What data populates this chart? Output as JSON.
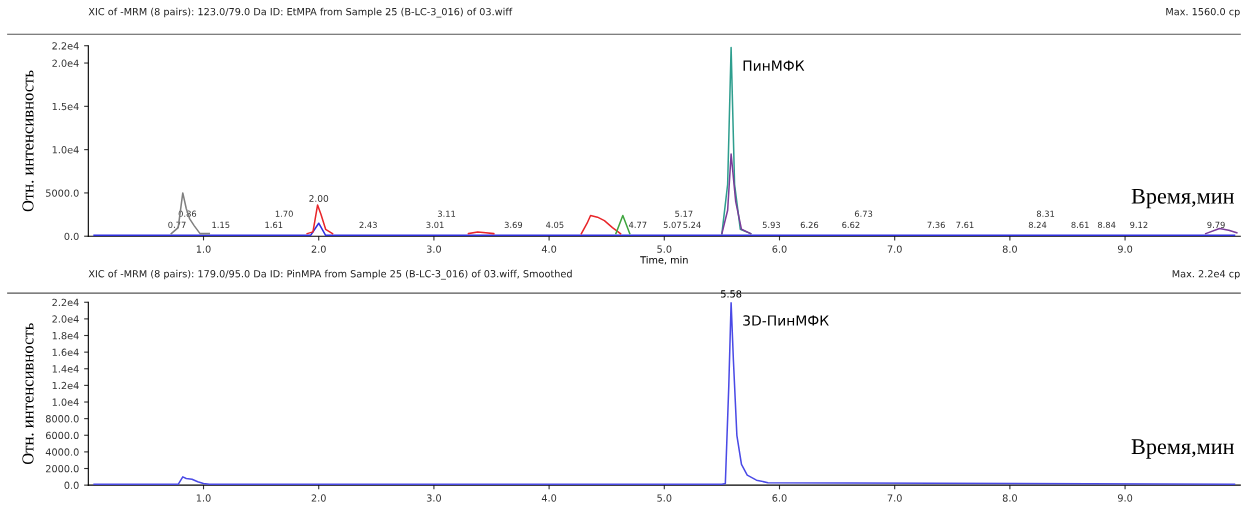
{
  "chart_data": [
    {
      "type": "line",
      "title": "XIC of -MRM (8 pairs): 123.0/79.0 Da ID: EtMPA from Sample 25 (B-LC-3_016) of 03.wiff",
      "subtitle": "Max. 1560.0 cp",
      "xlabel": "Time, min",
      "ylabel": "Отн. интенсивность",
      "xlim": [
        0,
        10
      ],
      "xticks": [
        {
          "value": 1,
          "label": "1.0"
        },
        {
          "value": 2,
          "label": "2.0"
        },
        {
          "value": 3,
          "label": "3.0"
        },
        {
          "value": 4,
          "label": "4.0"
        },
        {
          "value": 5,
          "label": "5.0"
        },
        {
          "value": 6,
          "label": "6.0"
        },
        {
          "value": 7,
          "label": "7.0"
        },
        {
          "value": 8,
          "label": "8.0"
        },
        {
          "value": 9,
          "label": "9.0"
        }
      ],
      "ylim": [
        0,
        22000
      ],
      "yticks": [
        {
          "value": 0,
          "label": "0.0"
        },
        {
          "value": 5000,
          "label": "5000.0"
        },
        {
          "value": 10000,
          "label": "1.0e4"
        },
        {
          "value": 15000,
          "label": "1.5e4"
        },
        {
          "value": 20000,
          "label": "2.0e4"
        },
        {
          "value": 22000,
          "label": "2.2e4"
        }
      ],
      "grid": false,
      "legend": false,
      "series": [
        {
          "color": "#2f2fe0",
          "x": [
            0.05,
            1.93,
            2.0,
            2.06,
            9.95
          ],
          "values": [
            100,
            100,
            1500,
            100,
            100
          ]
        },
        {
          "color": "#808080",
          "x": [
            0.72,
            0.78,
            0.82,
            0.85,
            0.88,
            0.92,
            0.97,
            1.05
          ],
          "values": [
            300,
            1000,
            5000,
            3200,
            2000,
            1200,
            300,
            300
          ]
        },
        {
          "color": "#e8262a",
          "x": [
            1.9,
            1.95,
            1.99,
            2.02,
            2.06,
            2.12,
            2.2,
            3.3,
            3.38,
            3.45,
            3.52,
            3.6,
            4.28,
            4.33,
            4.36,
            4.42,
            4.48,
            4.55,
            4.62
          ],
          "values": [
            300,
            500,
            3600,
            2500,
            800,
            300,
            null,
            300,
            500,
            400,
            300,
            null,
            300,
            1500,
            2400,
            2200,
            1800,
            1000,
            300
          ]
        },
        {
          "color": "#3fa53f",
          "x": [
            4.58,
            4.64,
            4.7
          ],
          "values": [
            300,
            2400,
            300
          ]
        },
        {
          "color": "#2e9e8e",
          "x": [
            5.5,
            5.55,
            5.58,
            5.61,
            5.66,
            5.75
          ],
          "values": [
            300,
            6000,
            21800,
            6000,
            800,
            300
          ]
        },
        {
          "color": "#7a3d9a",
          "x": [
            5.5,
            5.55,
            5.58,
            5.62,
            5.67,
            5.75,
            7.0,
            9.7,
            9.82,
            9.9,
            9.97
          ],
          "values": [
            300,
            3000,
            9500,
            4000,
            800,
            300,
            null,
            300,
            900,
            700,
            400
          ]
        }
      ],
      "annotations": [
        {
          "text": "ПинМФК",
          "x": 5.58,
          "y": 21800
        },
        "Время,мин",
        {
          "text": "0.77",
          "x": 0.77,
          "y": 600
        },
        {
          "text": "0.86",
          "x": 0.86,
          "y": 600
        },
        {
          "text": "1.15",
          "x": 1.15,
          "y": 600
        },
        {
          "text": "1.61",
          "x": 1.61,
          "y": 600
        },
        {
          "text": "1.70",
          "x": 1.7,
          "y": 600
        },
        {
          "text": "2.00",
          "x": 2.0,
          "y": 3600
        },
        {
          "text": "2.43",
          "x": 2.43,
          "y": 600
        },
        {
          "text": "3.01",
          "x": 3.01,
          "y": 600
        },
        {
          "text": "3.11",
          "x": 3.11,
          "y": 600
        },
        {
          "text": "3.69",
          "x": 3.69,
          "y": 600
        },
        {
          "text": "4.05",
          "x": 4.05,
          "y": 600
        },
        {
          "text": "4.77",
          "x": 4.77,
          "y": 600
        },
        {
          "text": "5.07",
          "x": 5.07,
          "y": 600
        },
        {
          "text": "5.17",
          "x": 5.17,
          "y": 600
        },
        {
          "text": "5.24",
          "x": 5.24,
          "y": 600
        },
        {
          "text": "5.93",
          "x": 5.93,
          "y": 600
        },
        {
          "text": "6.26",
          "x": 6.26,
          "y": 600
        },
        {
          "text": "6.62",
          "x": 6.62,
          "y": 600
        },
        {
          "text": "6.73",
          "x": 6.73,
          "y": 600
        },
        {
          "text": "7.36",
          "x": 7.36,
          "y": 600
        },
        {
          "text": "7.61",
          "x": 7.61,
          "y": 600
        },
        {
          "text": "8.24",
          "x": 8.24,
          "y": 600
        },
        {
          "text": "8.31",
          "x": 8.31,
          "y": 600
        },
        {
          "text": "8.61",
          "x": 8.61,
          "y": 600
        },
        {
          "text": "8.84",
          "x": 8.84,
          "y": 600
        },
        {
          "text": "9.12",
          "x": 9.12,
          "y": 600
        },
        {
          "text": "9.79",
          "x": 9.79,
          "y": 600
        }
      ]
    },
    {
      "type": "line",
      "title": "XIC of -MRM (8 pairs): 179.0/95.0 Da ID: PinMPA from Sample 25 (B-LC-3_016) of 03.wiff, Smoothed",
      "subtitle": "Max. 2.2e4 cp",
      "ylabel": "Отн. интенсивность",
      "xlim": [
        0,
        10
      ],
      "xticks": [
        {
          "value": 1,
          "label": "1.0"
        },
        {
          "value": 2,
          "label": "2.0"
        },
        {
          "value": 3,
          "label": "3.0"
        },
        {
          "value": 4,
          "label": "4.0"
        },
        {
          "value": 5,
          "label": "5.0"
        },
        {
          "value": 6,
          "label": "6.0"
        },
        {
          "value": 7,
          "label": "7.0"
        },
        {
          "value": 8,
          "label": "8.0"
        },
        {
          "value": 9,
          "label": "9.0"
        }
      ],
      "ylim": [
        0,
        22000
      ],
      "yticks": [
        {
          "value": 0,
          "label": "0.0"
        },
        {
          "value": 2000,
          "label": "2000.0"
        },
        {
          "value": 4000,
          "label": "4000.0"
        },
        {
          "value": 6000,
          "label": "6000.0"
        },
        {
          "value": 8000,
          "label": "8000.0"
        },
        {
          "value": 10000,
          "label": "1.0e4"
        },
        {
          "value": 12000,
          "label": "1.2e4"
        },
        {
          "value": 14000,
          "label": "1.4e4"
        },
        {
          "value": 16000,
          "label": "1.6e4"
        },
        {
          "value": 18000,
          "label": "1.8e4"
        },
        {
          "value": 20000,
          "label": "2.0e4"
        },
        {
          "value": 22000,
          "label": "2.2e4"
        }
      ],
      "grid": false,
      "legend": false,
      "series": [
        {
          "color": "#4a4ae6",
          "x": [
            0.05,
            0.78,
            0.82,
            0.85,
            0.9,
            0.95,
            1.0,
            1.05,
            5.5,
            5.53,
            5.56,
            5.58,
            5.6,
            5.63,
            5.67,
            5.72,
            5.8,
            5.9,
            9.95
          ],
          "values": [
            100,
            100,
            1000,
            800,
            700,
            400,
            200,
            100,
            100,
            200,
            12000,
            22000,
            15000,
            6000,
            2500,
            1200,
            600,
            300,
            100
          ]
        }
      ],
      "annotations": [
        {
          "text": "5.58",
          "x": 5.58,
          "y": 22000
        },
        {
          "text": "3D-ПинМФК",
          "x": 5.58,
          "y": 22000
        },
        "Время,мин"
      ]
    }
  ]
}
